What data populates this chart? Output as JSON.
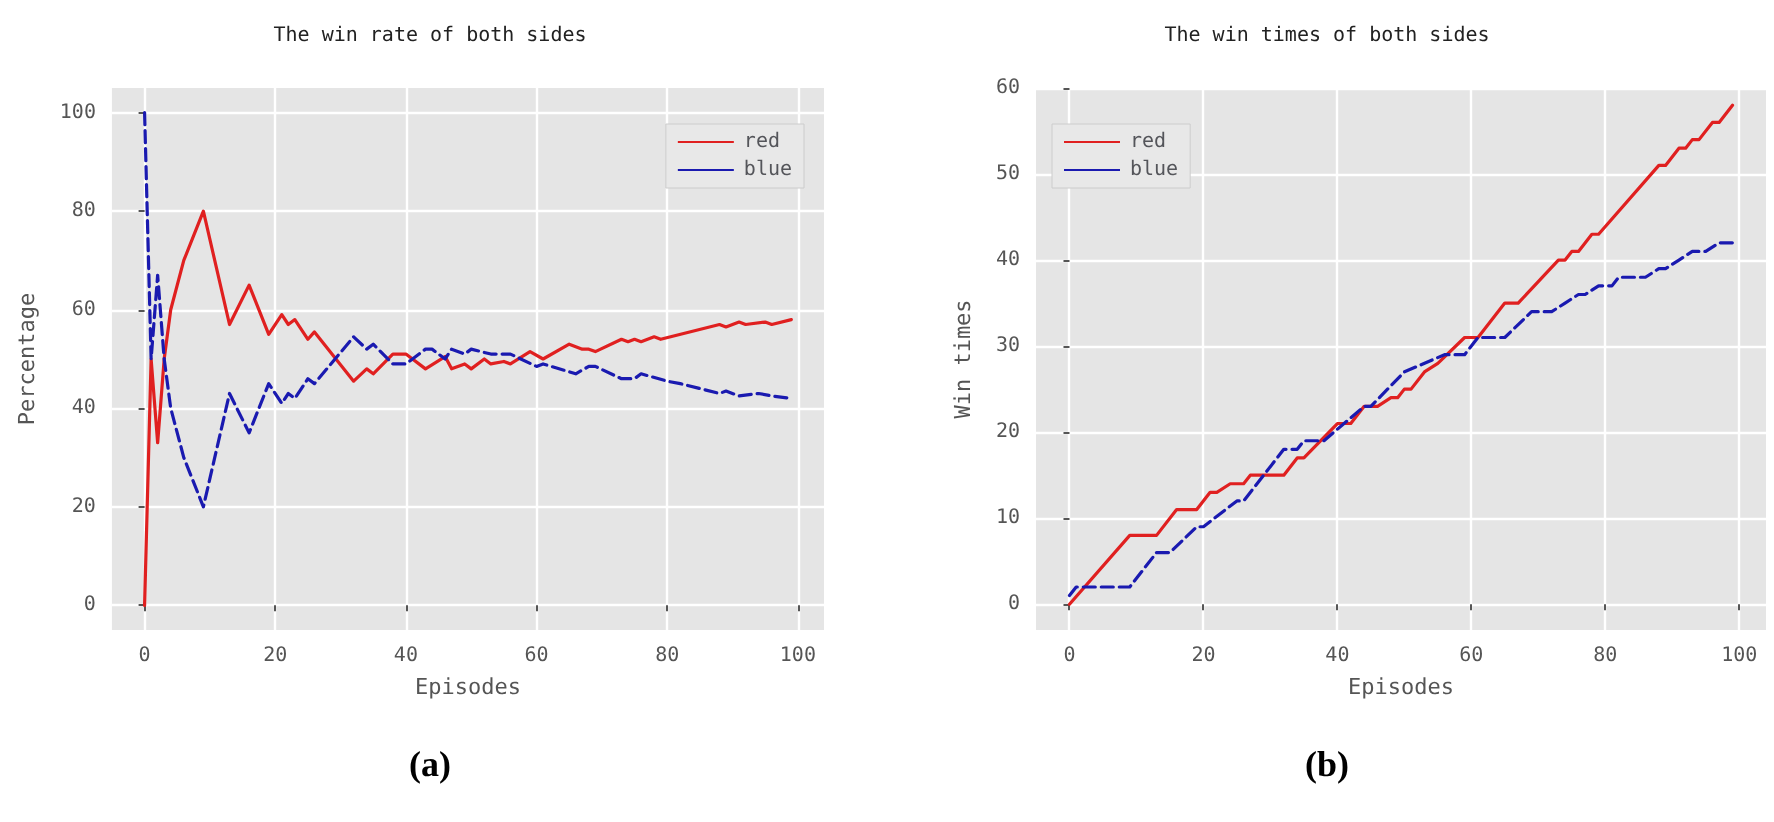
{
  "chart_data": [
    {
      "type": "line",
      "title": "The win rate of both sides",
      "xlabel": "Episodes",
      "ylabel": "Percentage",
      "xlim": [
        -5,
        104
      ],
      "xticks": [
        0,
        20,
        40,
        60,
        80,
        100
      ],
      "ylim": [
        -5,
        105
      ],
      "yticks": [
        0,
        20,
        40,
        60,
        80,
        100
      ],
      "grid": true,
      "legend": "top right",
      "marker": "none",
      "annotations": [
        "(a)"
      ],
      "series": [
        {
          "name": "red",
          "color": "#e02020",
          "line_style": "solid",
          "x": [
            0,
            1,
            2,
            3,
            4,
            6,
            9,
            13,
            16,
            19,
            21,
            22,
            23,
            25,
            26,
            32,
            34,
            35,
            38,
            40,
            43,
            46,
            47,
            49,
            50,
            52,
            53,
            55,
            56,
            59,
            61,
            65,
            67,
            68,
            69,
            73,
            74,
            75,
            76,
            78,
            79,
            88,
            89,
            91,
            92,
            95,
            96,
            99
          ],
          "values": [
            0,
            50,
            33,
            50,
            60,
            70,
            80,
            57,
            65,
            55,
            59,
            57,
            58,
            54,
            55.5,
            45.5,
            48,
            47,
            51,
            51,
            48,
            50.5,
            48,
            49,
            48,
            50,
            49,
            49.5,
            49,
            51.5,
            50,
            53,
            52,
            52,
            51.5,
            54,
            53.5,
            54,
            53.5,
            54.5,
            54,
            57,
            56.5,
            57.5,
            57,
            57.5,
            57,
            58
          ]
        },
        {
          "name": "blue",
          "color": "#1a1ab0",
          "line_style": "dashed",
          "x": [
            0,
            1,
            2,
            3,
            4,
            6,
            9,
            13,
            16,
            19,
            21,
            22,
            23,
            25,
            26,
            32,
            34,
            35,
            38,
            40,
            43,
            44,
            46,
            47,
            49,
            50,
            53,
            56,
            60,
            61,
            66,
            68,
            69,
            73,
            75,
            76,
            80,
            82,
            88,
            89,
            91,
            94,
            96,
            99
          ],
          "values": [
            100,
            50,
            67,
            50,
            40,
            30,
            20,
            43,
            35,
            45,
            41,
            43,
            42,
            46,
            45,
            54.5,
            52,
            53,
            49,
            49,
            52,
            52,
            50,
            52,
            51,
            52,
            51,
            51,
            48.5,
            49,
            47,
            48.5,
            48.5,
            46,
            46,
            47,
            45.5,
            45,
            43,
            43.5,
            42.5,
            43,
            42.5,
            42
          ]
        }
      ]
    },
    {
      "type": "line",
      "title": "The win times of both sides",
      "xlabel": "Episodes",
      "ylabel": "Win times",
      "xlim": [
        -5,
        104
      ],
      "xticks": [
        0,
        20,
        40,
        60,
        80,
        100
      ],
      "ylim": [
        -3,
        60
      ],
      "yticks": [
        0,
        10,
        20,
        30,
        40,
        50,
        60
      ],
      "grid": true,
      "legend": "top left",
      "marker": "none",
      "annotations": [
        "(b)"
      ],
      "series": [
        {
          "name": "red",
          "color": "#e02020",
          "line_style": "solid",
          "x": [
            0,
            9,
            13,
            16,
            19,
            21,
            22,
            24,
            26,
            27,
            32,
            34,
            35,
            40,
            42,
            44,
            46,
            48,
            49,
            50,
            51,
            53,
            55,
            59,
            61,
            65,
            67,
            73,
            74,
            75,
            76,
            78,
            79,
            88,
            89,
            91,
            92,
            93,
            94,
            96,
            97,
            99
          ],
          "values": [
            0,
            8,
            8,
            11,
            11,
            13,
            13,
            14,
            14,
            15,
            15,
            17,
            17,
            21,
            21,
            23,
            23,
            24,
            24,
            25,
            25,
            27,
            28,
            31,
            31,
            35,
            35,
            40,
            40,
            41,
            41,
            43,
            43,
            51,
            51,
            53,
            53,
            54,
            54,
            56,
            56,
            58
          ]
        },
        {
          "name": "blue",
          "color": "#1a1ab0",
          "line_style": "dashed",
          "x": [
            0,
            1,
            9,
            13,
            15,
            19,
            20,
            25,
            26,
            32,
            34,
            35,
            38,
            44,
            45,
            50,
            56,
            59,
            61,
            65,
            69,
            72,
            74,
            76,
            77,
            79,
            81,
            82,
            86,
            88,
            89,
            91,
            93,
            95,
            97,
            99
          ],
          "values": [
            1,
            2,
            2,
            6,
            6,
            9,
            9,
            12,
            12,
            18,
            18,
            19,
            19,
            23,
            23,
            27,
            29,
            29,
            31,
            31,
            34,
            34,
            35,
            36,
            36,
            37,
            37,
            38,
            38,
            39,
            39,
            40,
            41,
            41,
            42,
            42
          ]
        }
      ]
    }
  ]
}
